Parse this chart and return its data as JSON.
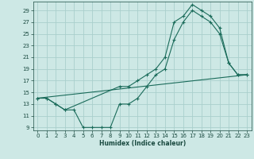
{
  "xlabel": "Humidex (Indice chaleur)",
  "bg_color": "#cde8e5",
  "grid_color": "#aacfcc",
  "line_color": "#1a6b5a",
  "tick_color": "#1a4a40",
  "xlim": [
    -0.5,
    23.5
  ],
  "ylim": [
    8.5,
    30.5
  ],
  "xticks": [
    0,
    1,
    2,
    3,
    4,
    5,
    6,
    7,
    8,
    9,
    10,
    11,
    12,
    13,
    14,
    15,
    16,
    17,
    18,
    19,
    20,
    21,
    22,
    23
  ],
  "yticks": [
    9,
    11,
    13,
    15,
    17,
    19,
    21,
    23,
    25,
    27,
    29
  ],
  "line1_x": [
    0,
    1,
    2,
    3,
    4,
    5,
    6,
    7,
    8,
    9,
    10,
    11,
    12,
    13,
    14,
    15,
    16,
    17,
    18,
    19,
    20,
    21,
    22,
    23
  ],
  "line1_y": [
    14,
    14,
    13,
    12,
    12,
    9,
    9,
    9,
    9,
    13,
    13,
    14,
    16,
    18,
    19,
    24,
    27,
    29,
    28,
    27,
    25,
    20,
    18,
    18
  ],
  "line2_x": [
    0,
    1,
    2,
    3,
    9,
    10,
    11,
    12,
    13,
    14,
    15,
    16,
    17,
    18,
    19,
    20,
    21,
    22,
    23
  ],
  "line2_y": [
    14,
    14,
    13,
    12,
    16,
    16,
    17,
    18,
    19,
    21,
    27,
    28,
    30,
    29,
    28,
    26,
    20,
    18,
    18
  ],
  "line3_x": [
    0,
    23
  ],
  "line3_y": [
    14,
    18
  ]
}
